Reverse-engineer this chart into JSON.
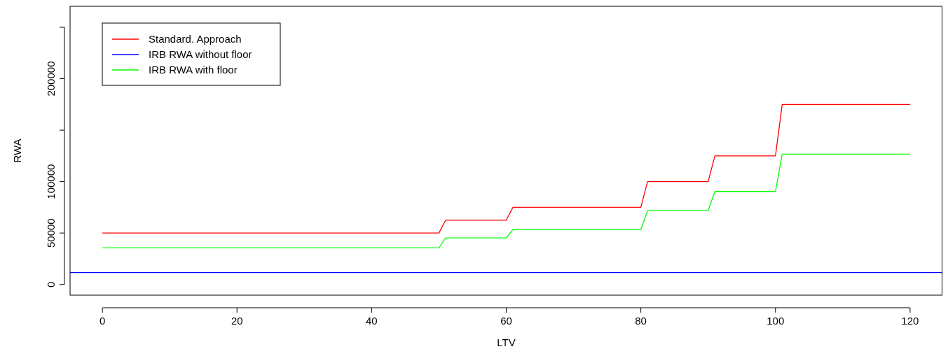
{
  "chart_data": {
    "type": "line",
    "xlabel": "LTV",
    "ylabel": "RWA",
    "xlim": [
      -4.8,
      124.8
    ],
    "ylim": [
      -10400,
      270400
    ],
    "xticks": [
      0,
      20,
      40,
      60,
      80,
      100,
      120
    ],
    "yticks": [
      0,
      50000,
      100000,
      {
        "value": 150000,
        "label": null
      },
      200000,
      {
        "value": 250000,
        "label": null
      }
    ],
    "grid": false,
    "legend": "top left",
    "line_style": "solid",
    "marker": "none",
    "series": [
      {
        "name": "Standard. Approach",
        "color": "#ff0000",
        "x": [
          0,
          50,
          51,
          60,
          61,
          80,
          81,
          90,
          91,
          100,
          101,
          120
        ],
        "values": [
          50000,
          50000,
          62500,
          62500,
          75000,
          75000,
          100000,
          100000,
          125000,
          125000,
          175000,
          175000
        ]
      },
      {
        "name": "IRB RWA without floor",
        "color": "#0000ff",
        "x": [
          -4.8,
          124.8
        ],
        "values": [
          11600,
          11600
        ]
      },
      {
        "name": "IRB RWA with floor",
        "color": "#00ff00",
        "x": [
          0,
          50,
          51,
          60,
          61,
          80,
          81,
          90,
          91,
          100,
          101,
          120
        ],
        "values": [
          35600,
          35600,
          45200,
          45200,
          53400,
          53400,
          71900,
          71900,
          90400,
          90400,
          126700,
          126700
        ]
      }
    ]
  }
}
